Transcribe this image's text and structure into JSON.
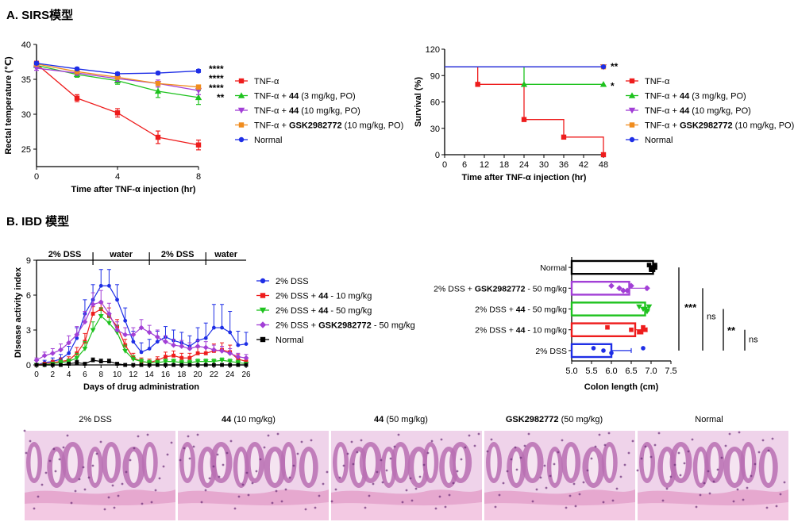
{
  "sections": {
    "a_title": "A. SIRS模型",
    "b_title": "B. IBD 模型"
  },
  "colors": {
    "tnf": "#ee1c1c",
    "green": "#1ec21e",
    "purple": "#a23fd6",
    "orange": "#f08c1e",
    "blue": "#1e2ee6",
    "black": "#000000"
  },
  "chart_data": [
    {
      "id": "sirs-temperature",
      "type": "line",
      "xlabel": "Time after TNF-α injection (hr)",
      "ylabel": "Rectal temperature (℃)",
      "xlim": [
        0,
        8
      ],
      "ylim": [
        22.5,
        40
      ],
      "xticks": [
        0,
        4,
        8
      ],
      "yticks": [
        25,
        30,
        35,
        40
      ],
      "x": [
        0,
        2,
        4,
        6,
        8
      ],
      "series": [
        {
          "name": "TNF-α",
          "color": "#ee1c1c",
          "marker": "square",
          "values": [
            37.2,
            32.3,
            30.2,
            26.7,
            25.6
          ],
          "err": [
            0.4,
            0.5,
            0.6,
            0.9,
            0.7
          ]
        },
        {
          "name": "TNF-α + 44 (3 mg/kg, PO)",
          "color": "#1ec21e",
          "marker": "triangle-up",
          "values": [
            37.0,
            35.7,
            34.8,
            33.3,
            32.4
          ],
          "err": [
            0.3,
            0.4,
            0.5,
            0.9,
            1.0
          ]
        },
        {
          "name": "TNF-α + 44 (10 mg/kg, PO)",
          "color": "#a23fd6",
          "marker": "triangle-down",
          "values": [
            36.6,
            35.9,
            35.1,
            34.4,
            33.4
          ],
          "err": [
            0.3,
            0.3,
            0.4,
            0.5,
            0.6
          ]
        },
        {
          "name": "TNF-α + GSK2982772 (10 mg/kg, PO)",
          "color": "#f08c1e",
          "marker": "square",
          "values": [
            37.2,
            36.1,
            35.3,
            34.4,
            33.9
          ],
          "err": [
            0.3,
            0.3,
            0.3,
            0.3,
            0.3
          ]
        },
        {
          "name": "Normal",
          "color": "#1e2ee6",
          "marker": "circle",
          "values": [
            37.3,
            36.5,
            35.8,
            35.9,
            36.2
          ],
          "err": [
            0.2,
            0.2,
            0.2,
            0.2,
            0.2
          ]
        }
      ],
      "significance": [
        "****",
        "****",
        "****",
        "**"
      ],
      "legend_placement": "right"
    },
    {
      "id": "sirs-survival",
      "type": "line",
      "step": true,
      "xlabel": "Time after TNF-α injection (hr)",
      "ylabel": "Survival (%)",
      "xlim": [
        0,
        48
      ],
      "ylim": [
        0,
        120
      ],
      "xticks": [
        0,
        6,
        12,
        18,
        24,
        30,
        36,
        42,
        48
      ],
      "yticks": [
        0,
        30,
        60,
        90,
        120
      ],
      "series": [
        {
          "name": "TNF-α",
          "color": "#ee1c1c",
          "marker": "square",
          "points": [
            [
              0,
              100
            ],
            [
              10,
              100
            ],
            [
              10,
              80
            ],
            [
              24,
              80
            ],
            [
              24,
              40
            ],
            [
              36,
              40
            ],
            [
              36,
              20
            ],
            [
              48,
              20
            ],
            [
              48,
              0
            ]
          ],
          "markers": [
            [
              10,
              80
            ],
            [
              24,
              40
            ],
            [
              36,
              20
            ],
            [
              48,
              0
            ]
          ]
        },
        {
          "name": "TNF-α + 44 (3 mg/kg, PO)",
          "color": "#1ec21e",
          "marker": "triangle-up",
          "points": [
            [
              0,
              100
            ],
            [
              24,
              100
            ],
            [
              24,
              80
            ],
            [
              48,
              80
            ]
          ],
          "markers": [
            [
              24,
              80
            ],
            [
              48,
              80
            ]
          ]
        },
        {
          "name": "TNF-α + 44 (10 mg/kg, PO)",
          "color": "#a23fd6",
          "marker": "triangle-down",
          "points": [
            [
              0,
              100
            ],
            [
              48,
              100
            ]
          ],
          "markers": [
            [
              48,
              100
            ]
          ]
        },
        {
          "name": "TNF-α + GSK2982772 (10 mg/kg, PO)",
          "color": "#f08c1e",
          "marker": "square",
          "points": [
            [
              0,
              100
            ],
            [
              48,
              100
            ]
          ],
          "markers": [
            [
              48,
              100
            ]
          ]
        },
        {
          "name": "Normal",
          "color": "#1e2ee6",
          "marker": "circle",
          "points": [
            [
              0,
              100
            ],
            [
              48,
              100
            ]
          ],
          "markers": [
            [
              48,
              100
            ]
          ]
        }
      ],
      "significance": [
        "**",
        "*"
      ],
      "legend_placement": "right"
    },
    {
      "id": "ibd-dai",
      "type": "line",
      "xlabel": "Days of drug administration",
      "ylabel": "DIsease activity index",
      "xlim": [
        0,
        26
      ],
      "ylim": [
        0,
        9
      ],
      "xticks": [
        0,
        2,
        4,
        6,
        8,
        10,
        12,
        14,
        16,
        18,
        20,
        22,
        24,
        26
      ],
      "yticks": [
        0,
        3,
        6,
        9
      ],
      "phases": [
        {
          "label": "2% DSS",
          "from": 0,
          "to": 7
        },
        {
          "label": "water",
          "from": 7,
          "to": 14
        },
        {
          "label": "2% DSS",
          "from": 14,
          "to": 21
        },
        {
          "label": "water",
          "from": 21,
          "to": 26
        }
      ],
      "x": [
        0,
        1,
        2,
        3,
        4,
        5,
        6,
        7,
        8,
        9,
        10,
        11,
        12,
        13,
        14,
        15,
        16,
        17,
        18,
        19,
        20,
        21,
        22,
        23,
        24,
        25,
        26
      ],
      "series": [
        {
          "name": "2% DSS",
          "color": "#1e2ee6",
          "marker": "circle",
          "values": [
            0,
            0.2,
            0.3,
            0.5,
            1.0,
            2.3,
            4.4,
            5.6,
            6.8,
            6.8,
            5.6,
            3.8,
            2.0,
            1.1,
            1.4,
            2.0,
            2.4,
            2.1,
            1.9,
            1.6,
            2.1,
            2.3,
            3.2,
            3.2,
            2.8,
            1.7,
            1.8
          ],
          "err": [
            0,
            0.2,
            0.3,
            0.4,
            0.6,
            0.9,
            1.2,
            1.3,
            1.4,
            1.4,
            1.3,
            1.1,
            0.9,
            0.8,
            0.8,
            0.9,
            0.9,
            0.9,
            0.9,
            0.9,
            1.1,
            1.3,
            2.0,
            2.0,
            1.8,
            1.2,
            1.0
          ]
        },
        {
          "name": "2% DSS + 44 - 10 mg/kg",
          "color": "#ee1c1c",
          "marker": "square",
          "values": [
            0,
            0.1,
            0.2,
            0.3,
            0.4,
            1.0,
            2.0,
            4.4,
            4.8,
            4.2,
            3.3,
            1.7,
            0.6,
            0.3,
            0.2,
            0.4,
            0.7,
            0.8,
            0.6,
            0.6,
            1.0,
            1.0,
            1.2,
            1.3,
            1.1,
            0.5,
            0.3
          ],
          "err": [
            0,
            0.1,
            0.2,
            0.3,
            0.3,
            0.5,
            0.7,
            0.6,
            0.5,
            0.7,
            0.6,
            0.5,
            0.4,
            0.3,
            0.3,
            0.3,
            0.4,
            0.4,
            0.4,
            0.4,
            0.5,
            0.5,
            0.6,
            0.6,
            0.6,
            0.4,
            0.3
          ]
        },
        {
          "name": "2% DSS + 44 - 50 mg/kg",
          "color": "#1ec21e",
          "marker": "triangle-down",
          "values": [
            0,
            0,
            0.1,
            0.2,
            0.3,
            0.6,
            1.4,
            3.0,
            4.2,
            3.6,
            2.8,
            1.2,
            0.5,
            0.3,
            0.2,
            0.2,
            0.3,
            0.3,
            0.2,
            0.2,
            0.3,
            0.3,
            0.3,
            0.4,
            0.3,
            0.2,
            0.1
          ],
          "err": [
            0,
            0,
            0.1,
            0.2,
            0.2,
            0.4,
            0.6,
            0.7,
            0.7,
            0.6,
            0.6,
            0.5,
            0.3,
            0.2,
            0.2,
            0.2,
            0.2,
            0.2,
            0.2,
            0.2,
            0.2,
            0.2,
            0.2,
            0.2,
            0.2,
            0.2,
            0.1
          ]
        },
        {
          "name": "2% DSS + GSK2982772 - 50 mg/kg",
          "color": "#a23fd6",
          "marker": "diamond",
          "values": [
            0.4,
            0.8,
            1.0,
            1.3,
            1.9,
            2.6,
            3.7,
            5.2,
            5.4,
            4.4,
            3.0,
            2.6,
            2.6,
            3.2,
            2.8,
            2.4,
            2.0,
            1.7,
            1.6,
            1.4,
            1.6,
            1.5,
            1.3,
            1.2,
            1.0,
            0.7,
            0.6
          ],
          "err": [
            0.2,
            0.3,
            0.4,
            0.5,
            0.6,
            0.7,
            0.9,
            1.0,
            1.0,
            0.9,
            0.7,
            0.6,
            0.6,
            0.7,
            0.6,
            0.6,
            0.5,
            0.5,
            0.5,
            0.5,
            0.5,
            0.5,
            0.4,
            0.4,
            0.4,
            0.3,
            0.3
          ]
        },
        {
          "name": "Normal",
          "color": "#000000",
          "marker": "square",
          "values": [
            0,
            0,
            0,
            0,
            0.1,
            0.2,
            0.1,
            0.4,
            0.3,
            0.3,
            0.1,
            0,
            0,
            0,
            0,
            0,
            0,
            0,
            0,
            0,
            0,
            0,
            0,
            0,
            0,
            0,
            0
          ],
          "err": [
            0,
            0,
            0,
            0,
            0.1,
            0.2,
            0.1,
            0.2,
            0.2,
            0.2,
            0.1,
            0,
            0,
            0,
            0,
            0,
            0,
            0,
            0,
            0,
            0,
            0,
            0,
            0,
            0,
            0,
            0
          ]
        }
      ],
      "legend_placement": "right"
    },
    {
      "id": "ibd-colon-length",
      "type": "bar",
      "orientation": "horizontal",
      "xlabel": "Colon length (cm)",
      "xlim": [
        5.0,
        7.5
      ],
      "xticks": [
        "5.0",
        "5.5",
        "6.0",
        "6.5",
        "7.0",
        "7.5"
      ],
      "categories": [
        "Normal",
        "2% DSS + GSK2982772 - 50 mg/kg",
        "2% DSS + 44 - 50 mg/kg",
        "2% DSS + 44 - 10 mg/kg",
        "2% DSS"
      ],
      "series": [
        {
          "name": "Normal",
          "color": "#000000",
          "marker": "square",
          "value": 7.05,
          "err": 0.08,
          "points": [
            6.95,
            7.0,
            7.05,
            7.1,
            7.1,
            7.0
          ]
        },
        {
          "name": "2% DSS + GSK2982772 - 50 mg/kg",
          "color": "#a23fd6",
          "marker": "diamond",
          "value": 6.45,
          "err": 0.42,
          "points": [
            6.0,
            6.2,
            6.4,
            6.5,
            6.9,
            6.3
          ]
        },
        {
          "name": "2% DSS + 44 - 50 mg/kg",
          "color": "#1ec21e",
          "marker": "triangle-down",
          "value": 6.85,
          "err": 0.1,
          "points": [
            6.7,
            6.8,
            6.9,
            6.95,
            6.85
          ]
        },
        {
          "name": "2% DSS + 44 - 10 mg/kg",
          "color": "#ee1c1c",
          "marker": "square",
          "value": 6.6,
          "err": 0.3,
          "points": [
            5.9,
            6.5,
            6.7,
            6.8,
            6.85,
            6.75
          ]
        },
        {
          "name": "2% DSS",
          "color": "#1e2ee6",
          "marker": "circle",
          "value": 6.0,
          "err": 0.5,
          "points": [
            5.55,
            5.8,
            6.0,
            6.8
          ]
        }
      ],
      "significance": [
        {
          "label": "***",
          "between": "Normal vs 2% DSS"
        },
        {
          "label": "ns",
          "between": "GSK2982772 vs 2% DSS"
        },
        {
          "label": "**",
          "between": "44 - 50 mg/kg vs 2% DSS"
        },
        {
          "label": "ns",
          "between": "44 - 10 mg/kg vs 2% DSS"
        }
      ]
    }
  ],
  "histology": {
    "panels": [
      {
        "label_bold": "",
        "label_rest": "2% DSS"
      },
      {
        "label_bold": "44",
        "label_rest": " (10 mg/kg)"
      },
      {
        "label_bold": "44",
        "label_rest": " (50 mg/kg)"
      },
      {
        "label_bold": "GSK2982772",
        "label_rest": " (50 mg/kg)"
      },
      {
        "label_bold": "",
        "label_rest": "Normal"
      }
    ]
  }
}
